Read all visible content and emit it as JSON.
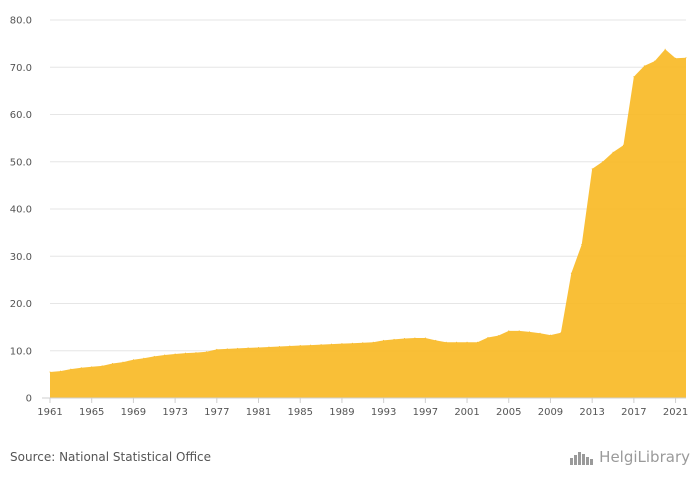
{
  "chart_data": {
    "type": "area",
    "color": "#f8b821",
    "x": [
      1961,
      1962,
      1963,
      1964,
      1965,
      1966,
      1967,
      1968,
      1969,
      1970,
      1971,
      1972,
      1973,
      1974,
      1975,
      1976,
      1977,
      1978,
      1979,
      1980,
      1981,
      1982,
      1983,
      1984,
      1985,
      1986,
      1987,
      1988,
      1989,
      1990,
      1991,
      1992,
      1993,
      1994,
      1995,
      1996,
      1997,
      1998,
      1999,
      2000,
      2001,
      2002,
      2003,
      2004,
      2005,
      2006,
      2007,
      2008,
      2009,
      2010,
      2011,
      2012,
      2013,
      2014,
      2015,
      2016,
      2017,
      2018,
      2019,
      2020,
      2021,
      2022
    ],
    "values": [
      5.5,
      5.7,
      6.1,
      6.4,
      6.6,
      6.8,
      7.3,
      7.6,
      8.1,
      8.4,
      8.8,
      9.1,
      9.3,
      9.5,
      9.6,
      9.8,
      10.3,
      10.4,
      10.5,
      10.6,
      10.7,
      10.8,
      10.9,
      11.0,
      11.1,
      11.2,
      11.3,
      11.4,
      11.5,
      11.6,
      11.7,
      11.8,
      12.2,
      12.4,
      12.6,
      12.7,
      12.7,
      12.2,
      11.8,
      11.8,
      11.8,
      11.8,
      12.8,
      13.2,
      14.2,
      14.2,
      14.0,
      13.7,
      13.3,
      13.8,
      26.4,
      32.5,
      48.5,
      50.0,
      52.0,
      53.5,
      68.0,
      70.3,
      71.3,
      73.8,
      71.9,
      72.0
    ],
    "xticks": [
      "1961",
      "1965",
      "1969",
      "1973",
      "1977",
      "1981",
      "1985",
      "1989",
      "1993",
      "1997",
      "2001",
      "2005",
      "2009",
      "2013",
      "2017",
      "2021"
    ],
    "yticks": [
      "0",
      "10.0",
      "20.0",
      "30.0",
      "40.0",
      "50.0",
      "60.0",
      "70.0",
      "80.0"
    ],
    "ylim": [
      0,
      80
    ],
    "grid": true
  },
  "footer": {
    "source": "Source: National Statistical Office",
    "logo_text": "HelgiLibrary",
    "logo_icon": "helgi-library-icon"
  }
}
